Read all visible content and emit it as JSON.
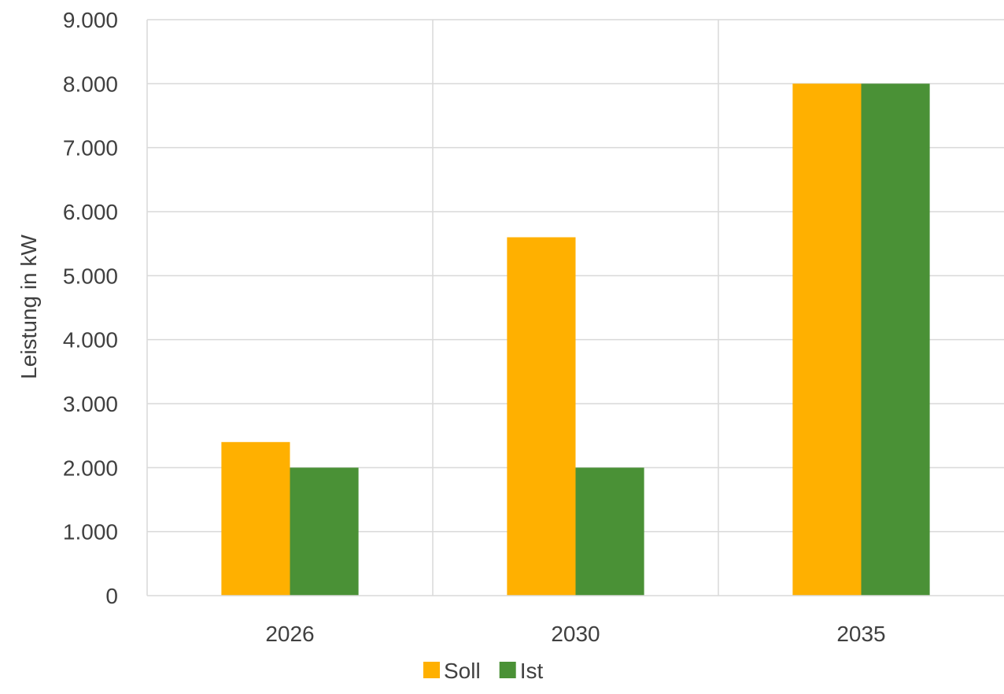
{
  "chart_data": {
    "type": "bar",
    "title": "",
    "xlabel": "",
    "ylabel": "Leistung in kW",
    "categories": [
      "2026",
      "2030",
      "2035"
    ],
    "series": [
      {
        "name": "Soll",
        "color": "#ffb000",
        "values": [
          2400,
          5600,
          8000
        ]
      },
      {
        "name": "Ist",
        "color": "#4a9136",
        "values": [
          2000,
          2000,
          8000
        ]
      }
    ],
    "ylim": [
      0,
      9000
    ],
    "yticks": [
      "0",
      "1.000",
      "2.000",
      "3.000",
      "4.000",
      "5.000",
      "6.000",
      "7.000",
      "8.000",
      "9.000"
    ],
    "grid": true,
    "legend": "bottom"
  }
}
